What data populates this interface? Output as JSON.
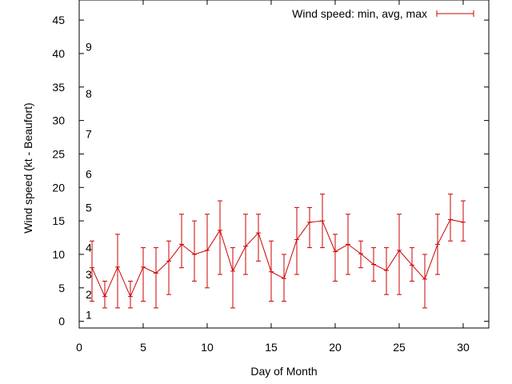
{
  "chart_data": {
    "type": "line",
    "xlabel": "Day of Month",
    "ylabel": "Wind speed (kt - Beaufort)",
    "xlim": [
      0,
      32
    ],
    "ylim": [
      -1,
      48
    ],
    "x_ticks": [
      0,
      5,
      10,
      15,
      20,
      25,
      30
    ],
    "y_ticks": [
      0,
      5,
      10,
      15,
      20,
      25,
      30,
      35,
      40,
      45
    ],
    "grid": false,
    "legend_position": "top-right",
    "series": [
      {
        "name": "Wind speed: min, avg, max",
        "color": "#cc0000",
        "x": [
          1,
          2,
          3,
          4,
          5,
          6,
          7,
          8,
          9,
          10,
          11,
          12,
          13,
          14,
          15,
          16,
          17,
          18,
          19,
          20,
          21,
          22,
          23,
          24,
          25,
          26,
          27,
          28,
          29,
          30
        ],
        "avg": [
          8,
          3.7,
          8.1,
          3.7,
          8.1,
          7.2,
          9,
          11.5,
          10,
          10.6,
          13.6,
          7.5,
          11.2,
          13.2,
          7.4,
          6.4,
          12.2,
          14.8,
          15,
          10.4,
          11.5,
          10.1,
          8.5,
          7.6,
          10.6,
          8.4,
          6.3,
          11.5,
          15.2,
          14.8
        ],
        "min": [
          3,
          2,
          2,
          2,
          3,
          2,
          4,
          8,
          6,
          5,
          7,
          2,
          7,
          9,
          3,
          3,
          7,
          11,
          11,
          6,
          7,
          8,
          6,
          4,
          4,
          6,
          2,
          7,
          12,
          12
        ],
        "max": [
          12,
          6,
          13,
          6,
          11,
          11,
          12,
          16,
          15,
          16,
          18,
          11,
          16,
          16,
          12,
          10,
          17,
          17,
          19,
          13,
          16,
          12,
          11,
          11,
          16,
          11,
          10,
          16,
          19,
          18
        ]
      }
    ],
    "annotations": [
      {
        "text": "1",
        "y": 1
      },
      {
        "text": "2",
        "y": 4
      },
      {
        "text": "3",
        "y": 7
      },
      {
        "text": "4",
        "y": 11
      },
      {
        "text": "5",
        "y": 17
      },
      {
        "text": "6",
        "y": 22
      },
      {
        "text": "7",
        "y": 28
      },
      {
        "text": "8",
        "y": 34
      },
      {
        "text": "9",
        "y": 41
      }
    ]
  }
}
